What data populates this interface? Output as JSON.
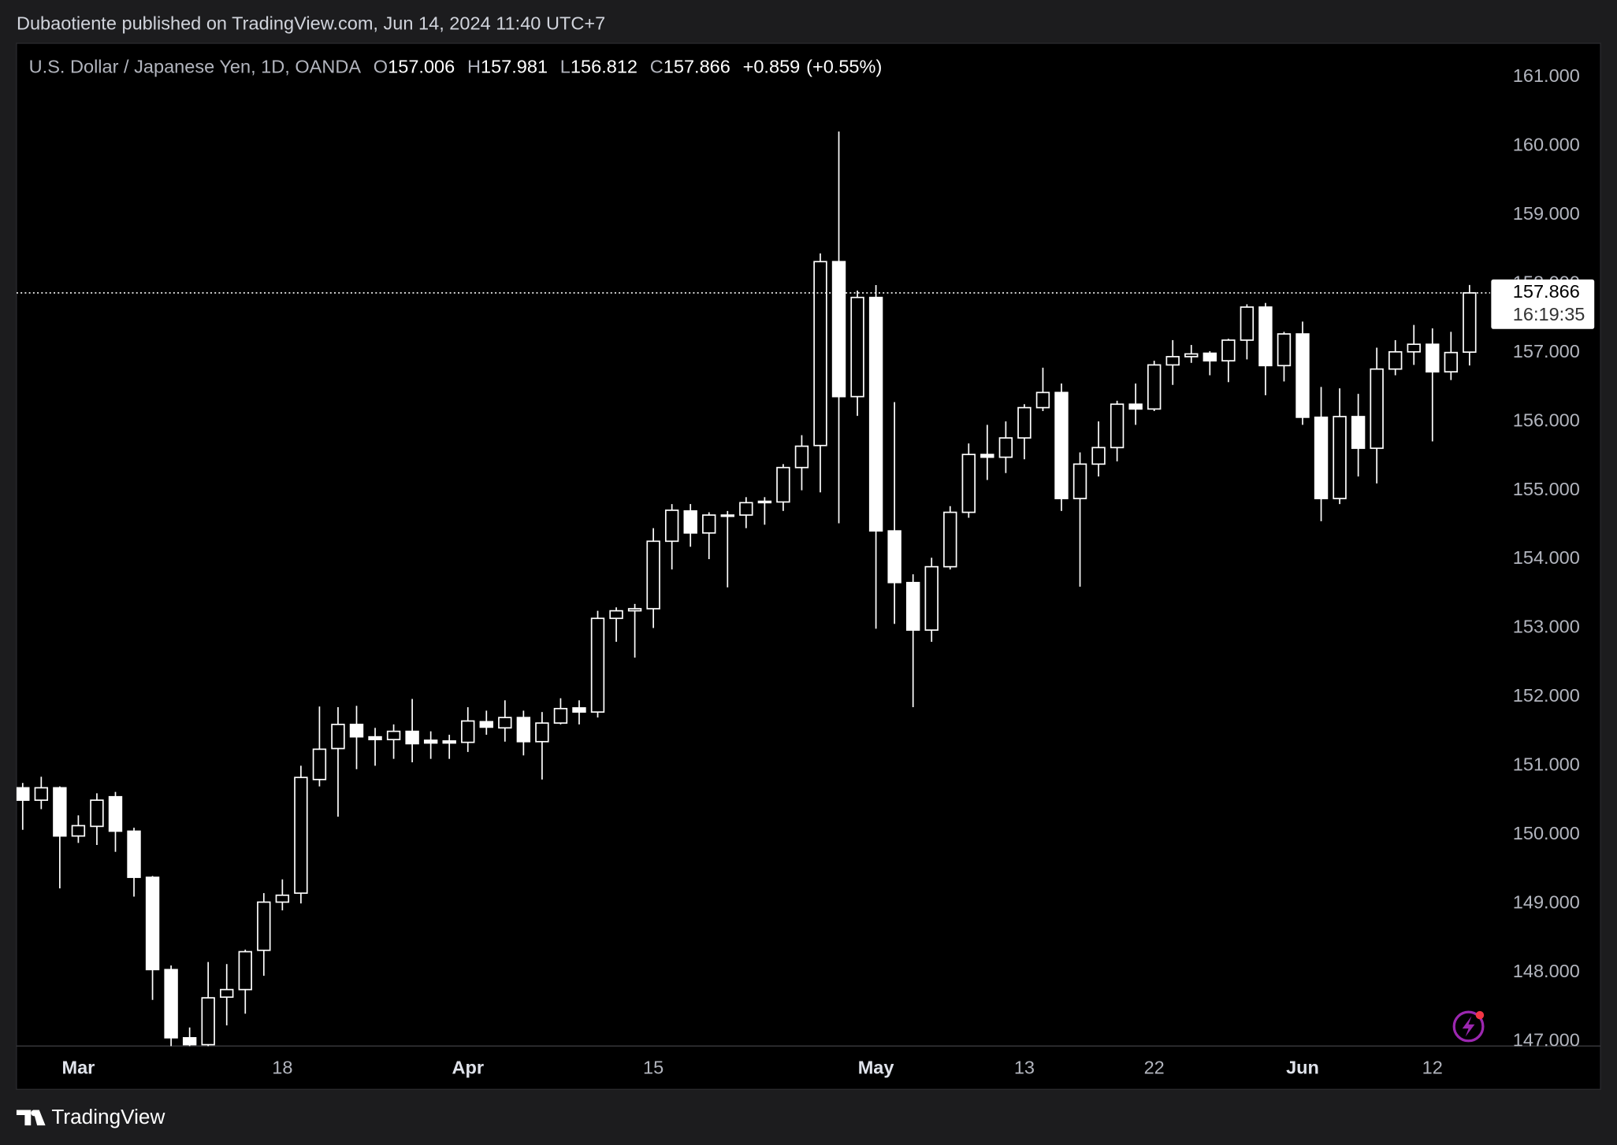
{
  "header": {
    "attribution": "Dubaotiente published on TradingView.com, Jun 14, 2024 11:40 UTC+7"
  },
  "footer": {
    "brand": "TradingView"
  },
  "chart_data": {
    "type": "candlestick",
    "categories": [
      null,
      null,
      null,
      "Mar",
      null,
      null,
      null,
      null,
      null,
      null,
      null,
      null,
      null,
      null,
      "18",
      null,
      null,
      null,
      null,
      null,
      null,
      null,
      null,
      null,
      "Apr",
      null,
      null,
      null,
      null,
      null,
      null,
      null,
      null,
      null,
      "15",
      null,
      null,
      null,
      null,
      null,
      null,
      null,
      null,
      null,
      null,
      null,
      "May",
      null,
      null,
      null,
      null,
      null,
      null,
      null,
      "13",
      null,
      null,
      null,
      null,
      null,
      null,
      "22",
      null,
      null,
      null,
      null,
      null,
      null,
      null,
      "Jun",
      null,
      null,
      null,
      null,
      null,
      null,
      "12",
      null,
      null
    ],
    "series": [
      {
        "name": "U.S. Dollar / Japanese Yen, 1D, OANDA",
        "color": "#ffffff",
        "open": [
          150.68,
          150.5,
          150.68,
          149.98,
          150.12,
          150.55,
          150.05,
          149.38,
          148.04,
          147.05,
          146.95,
          147.64,
          147.75,
          148.32,
          149.02,
          149.15,
          150.8,
          151.25,
          151.6,
          151.42,
          151.38,
          151.5,
          151.37,
          151.36,
          151.34,
          151.64,
          151.55,
          151.7,
          151.35,
          151.62,
          151.84,
          151.78,
          153.14,
          153.25,
          153.28,
          154.26,
          154.7,
          154.38,
          154.63,
          154.64,
          154.82,
          154.83,
          155.33,
          155.65,
          158.32,
          156.36,
          157.8,
          154.41,
          153.66,
          152.97,
          153.89,
          154.68,
          155.52,
          155.48,
          155.76,
          156.2,
          156.42,
          154.88,
          155.38,
          155.62,
          156.25,
          156.18,
          156.82,
          156.94,
          156.99,
          156.88,
          157.18,
          157.66,
          156.81,
          157.27,
          156.06,
          154.88,
          156.07,
          155.61,
          156.76,
          157.01,
          157.12,
          156.72,
          157.006
        ],
        "high": [
          150.75,
          150.84,
          150.7,
          150.28,
          150.6,
          150.62,
          150.1,
          149.4,
          148.1,
          147.2,
          148.15,
          148.12,
          148.33,
          149.15,
          149.35,
          151.0,
          151.86,
          151.85,
          151.87,
          151.55,
          151.6,
          151.97,
          151.5,
          151.45,
          151.85,
          151.8,
          151.95,
          151.8,
          151.78,
          151.98,
          151.95,
          153.25,
          153.3,
          153.35,
          154.45,
          154.8,
          154.8,
          154.68,
          154.7,
          154.9,
          154.9,
          155.38,
          155.8,
          158.44,
          160.21,
          157.9,
          157.98,
          156.28,
          153.78,
          154.02,
          154.77,
          155.68,
          155.95,
          156.0,
          156.25,
          156.78,
          156.55,
          155.55,
          156.0,
          156.3,
          156.55,
          156.88,
          157.18,
          157.11,
          157.02,
          157.2,
          157.7,
          157.72,
          157.3,
          157.45,
          156.5,
          156.48,
          156.4,
          157.07,
          157.18,
          157.4,
          157.35,
          157.3,
          157.981
        ],
        "low": [
          150.07,
          150.37,
          149.22,
          149.88,
          149.85,
          149.75,
          149.1,
          147.6,
          146.9,
          146.5,
          146.5,
          147.23,
          147.4,
          147.95,
          148.9,
          149.0,
          150.7,
          150.26,
          150.95,
          151.0,
          151.1,
          151.05,
          151.1,
          151.1,
          151.2,
          151.45,
          151.35,
          151.15,
          150.8,
          151.6,
          151.6,
          151.7,
          152.8,
          152.57,
          153.0,
          153.85,
          154.18,
          154.0,
          153.59,
          154.45,
          154.5,
          154.7,
          155.0,
          154.97,
          154.52,
          156.08,
          152.99,
          153.06,
          151.85,
          152.8,
          153.85,
          154.6,
          155.15,
          155.25,
          155.45,
          156.15,
          154.7,
          153.6,
          155.2,
          155.42,
          155.95,
          156.15,
          156.53,
          156.85,
          156.67,
          156.57,
          156.9,
          156.38,
          156.58,
          155.95,
          154.55,
          154.8,
          155.2,
          155.1,
          156.67,
          156.82,
          155.71,
          156.6,
          156.812
        ],
        "close": [
          150.5,
          150.68,
          149.98,
          150.13,
          150.5,
          150.05,
          149.38,
          148.04,
          147.05,
          146.95,
          147.63,
          147.75,
          148.3,
          149.02,
          149.12,
          150.83,
          151.24,
          151.6,
          151.42,
          151.38,
          151.5,
          151.32,
          151.33,
          151.33,
          151.65,
          151.56,
          151.7,
          151.35,
          151.62,
          151.83,
          151.78,
          153.14,
          153.25,
          153.28,
          154.26,
          154.71,
          154.38,
          154.64,
          154.64,
          154.82,
          154.84,
          155.33,
          155.64,
          158.32,
          156.36,
          157.8,
          154.41,
          153.66,
          152.97,
          153.89,
          154.68,
          155.52,
          155.48,
          155.76,
          156.2,
          156.42,
          154.88,
          155.38,
          155.62,
          156.25,
          156.18,
          156.82,
          156.94,
          156.98,
          156.88,
          157.18,
          157.66,
          156.81,
          157.27,
          156.06,
          154.88,
          156.07,
          155.61,
          156.76,
          157.01,
          157.12,
          156.72,
          157.0,
          157.866
        ]
      }
    ],
    "ohlc_prefixes": [
      "O",
      "H",
      "L",
      "C"
    ],
    "change": {
      "value": 0.859,
      "label": "+0.859"
    },
    "change_percent": {
      "value": 0.55,
      "label": "(+0.55%)"
    },
    "last_price_countdown": "16:19:35",
    "ylim": [
      146.93,
      161.49
    ],
    "yticks": [
      {
        "value": 147,
        "label": "147.000"
      },
      {
        "value": 148,
        "label": "148.000"
      },
      {
        "value": 149,
        "label": "149.000"
      },
      {
        "value": 150,
        "label": "150.000"
      },
      {
        "value": 151,
        "label": "151.000"
      },
      {
        "value": 152,
        "label": "152.000"
      },
      {
        "value": 153,
        "label": "153.000"
      },
      {
        "value": 154,
        "label": "154.000"
      },
      {
        "value": 155,
        "label": "155.000"
      },
      {
        "value": 156,
        "label": "156.000"
      },
      {
        "value": 157,
        "label": "157.000"
      },
      {
        "value": 158,
        "label": "158.000"
      },
      {
        "value": 159,
        "label": "159.000"
      },
      {
        "value": 160,
        "label": "160.000"
      },
      {
        "value": 161,
        "label": "161.000"
      }
    ],
    "grid": false
  }
}
